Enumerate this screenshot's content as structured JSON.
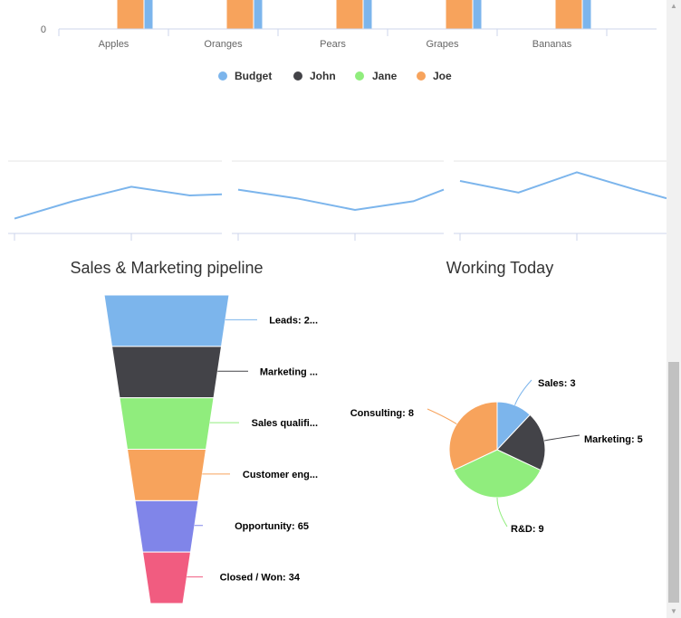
{
  "bar_chart": {
    "type": "bar",
    "categories": [
      "Apples",
      "Oranges",
      "Pears",
      "Grapes",
      "Bananas"
    ],
    "y_tick_labels": [
      "0"
    ],
    "legend": [
      {
        "name": "Budget",
        "color": "#7cb5ec"
      },
      {
        "name": "John",
        "color": "#434348"
      },
      {
        "name": "Jane",
        "color": "#90ed7d"
      },
      {
        "name": "Joe",
        "color": "#f7a35c"
      }
    ]
  },
  "sparklines": {
    "type": "line",
    "color": "#7cb5ec",
    "panels": [
      {
        "values": [
          1,
          4,
          6.5,
          5,
          5.2
        ]
      },
      {
        "values": [
          6,
          4.5,
          2.5,
          4,
          6
        ]
      },
      {
        "values": [
          7.5,
          5.5,
          9,
          6,
          4.5
        ]
      }
    ]
  },
  "funnel_chart": {
    "type": "funnel",
    "title": "Sales & Marketing pipeline",
    "stages": [
      {
        "label": "Leads: 2...",
        "color": "#7cb5ec"
      },
      {
        "label": "Marketing ...",
        "color": "#434348"
      },
      {
        "label": "Sales qualifi...",
        "color": "#90ed7d"
      },
      {
        "label": "Customer eng...",
        "color": "#f7a35c"
      },
      {
        "label": "Opportunity: 65",
        "value": 65,
        "color": "#8085e9"
      },
      {
        "label": "Closed / Won: 34",
        "value": 34,
        "color": "#f15c80"
      }
    ]
  },
  "pie_chart": {
    "type": "pie",
    "title": "Working Today",
    "slices": [
      {
        "name": "Sales",
        "value": 3,
        "label": "Sales: 3",
        "color": "#7cb5ec"
      },
      {
        "name": "Marketing",
        "value": 5,
        "label": "Marketing: 5",
        "color": "#434348"
      },
      {
        "name": "R&D",
        "value": 9,
        "label": "R&D: 9",
        "color": "#90ed7d"
      },
      {
        "name": "Consulting",
        "value": 8,
        "label": "Consulting: 8",
        "color": "#f7a35c"
      }
    ]
  },
  "scrollbar": {
    "up_icon": "▲",
    "down_icon": "▼"
  }
}
